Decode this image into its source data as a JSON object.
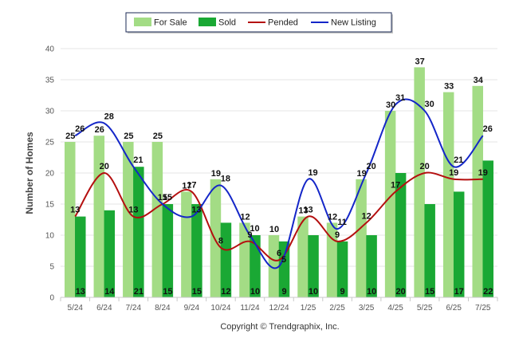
{
  "chart_data": {
    "type": "bar",
    "categories": [
      "5/24",
      "6/24",
      "7/24",
      "8/24",
      "9/24",
      "10/24",
      "11/24",
      "12/24",
      "1/25",
      "2/25",
      "3/25",
      "4/25",
      "5/25",
      "6/25",
      "7/25"
    ],
    "series": [
      {
        "name": "For Sale",
        "kind": "bar",
        "color": "#a3dc85",
        "values": [
          25,
          26,
          25,
          25,
          17,
          19,
          12,
          10,
          13,
          12,
          19,
          30,
          37,
          33,
          34
        ]
      },
      {
        "name": "Sold",
        "kind": "bar",
        "color": "#1aa834",
        "values": [
          13,
          14,
          21,
          15,
          15,
          12,
          10,
          9,
          10,
          9,
          10,
          20,
          15,
          17,
          22
        ]
      },
      {
        "name": "Pended",
        "kind": "line",
        "color": "#b40f0f",
        "values": [
          13,
          20,
          13,
          15,
          17,
          8,
          9,
          6,
          13,
          9,
          12,
          17,
          20,
          19,
          19
        ]
      },
      {
        "name": "New Listing",
        "kind": "line",
        "color": "#1426c8",
        "values": [
          26,
          28,
          21,
          15,
          13,
          18,
          10,
          5,
          19,
          11,
          20,
          31,
          30,
          21,
          26
        ]
      }
    ],
    "ylabel": "Number of Homes",
    "ylim": [
      0,
      40
    ],
    "yticks": [
      0,
      5,
      10,
      15,
      20,
      25,
      30,
      35,
      40
    ],
    "grid": true,
    "legend": "top-center",
    "footer": "Copyright © Trendgraphix, Inc."
  }
}
